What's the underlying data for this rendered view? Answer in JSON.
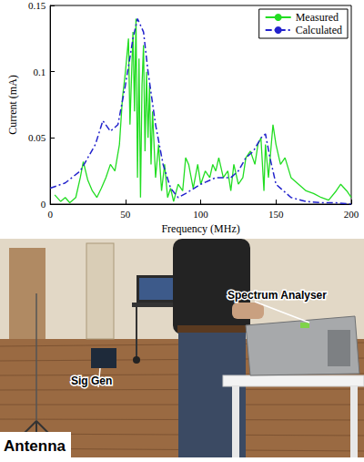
{
  "chart_data": {
    "type": "line",
    "x_label": "Frequency (MHz)",
    "y_label": "Current (mA)",
    "xlim": [
      0,
      200
    ],
    "xticks": [
      0,
      50,
      100,
      150,
      200
    ],
    "ylim": [
      0,
      0.15
    ],
    "yticks": [
      0,
      0.05,
      0.1,
      0.15
    ],
    "grid": false,
    "legend": "top-right",
    "series": [
      {
        "name": "Measured",
        "color": "#22dd22",
        "line_style": "solid",
        "x": [
          3,
          7,
          10,
          13,
          17,
          20,
          22,
          25,
          28,
          31,
          34,
          37,
          40,
          43,
          46,
          48,
          50,
          52,
          53,
          55,
          56,
          57,
          58,
          59,
          60,
          61,
          62,
          63,
          64,
          65,
          66,
          67,
          68,
          70,
          72,
          74,
          76,
          78,
          80,
          82,
          85,
          88,
          90,
          92,
          95,
          98,
          100,
          103,
          106,
          108,
          110,
          112,
          115,
          118,
          120,
          122,
          125,
          128,
          130,
          133,
          136,
          138,
          140,
          142,
          143,
          145,
          148,
          150,
          153,
          156,
          160,
          165,
          170,
          175,
          180,
          185,
          190,
          193,
          197,
          200
        ],
        "values": [
          0.007,
          0.002,
          0.005,
          0.001,
          0.005,
          0.02,
          0.032,
          0.018,
          0.01,
          0.005,
          0.012,
          0.02,
          0.03,
          0.025,
          0.045,
          0.08,
          0.1,
          0.125,
          0.06,
          0.13,
          0.07,
          0.14,
          0.02,
          0.11,
          0.005,
          0.09,
          0.12,
          0.04,
          0.1,
          0.05,
          0.09,
          0.03,
          0.07,
          0.02,
          0.045,
          0.01,
          0.03,
          0.005,
          0.012,
          0.002,
          0.015,
          0.01,
          0.035,
          0.03,
          0.012,
          0.03,
          0.015,
          0.025,
          0.02,
          0.03,
          0.025,
          0.035,
          0.02,
          0.025,
          0.01,
          0.03,
          0.015,
          0.02,
          0.035,
          0.04,
          0.03,
          0.045,
          0.05,
          0.01,
          0.045,
          0.02,
          0.06,
          0.045,
          0.03,
          0.035,
          0.02,
          0.015,
          0.01,
          0.008,
          0.005,
          0.003,
          0.01,
          0.015,
          0.01,
          0.005
        ]
      },
      {
        "name": "Calculated",
        "color": "#2222cc",
        "line_style": "dashdot",
        "x": [
          0,
          10,
          20,
          30,
          35,
          40,
          45,
          50,
          55,
          58,
          62,
          65,
          70,
          75,
          80,
          85,
          90,
          100,
          110,
          120,
          125,
          130,
          135,
          140,
          143,
          146,
          150,
          160,
          170,
          180,
          190,
          200
        ],
        "values": [
          0.012,
          0.016,
          0.025,
          0.045,
          0.063,
          0.055,
          0.06,
          0.09,
          0.125,
          0.14,
          0.13,
          0.1,
          0.06,
          0.03,
          0.012,
          0.005,
          0.008,
          0.015,
          0.02,
          0.02,
          0.025,
          0.035,
          0.04,
          0.05,
          0.053,
          0.035,
          0.015,
          0.005,
          0.002,
          0.001,
          0.001,
          0.0
        ]
      }
    ]
  },
  "photo": {
    "labels": {
      "analyser": "Spectrum Analyser",
      "sig_gen": "Sig Gen",
      "antenna": "Antenna"
    }
  }
}
